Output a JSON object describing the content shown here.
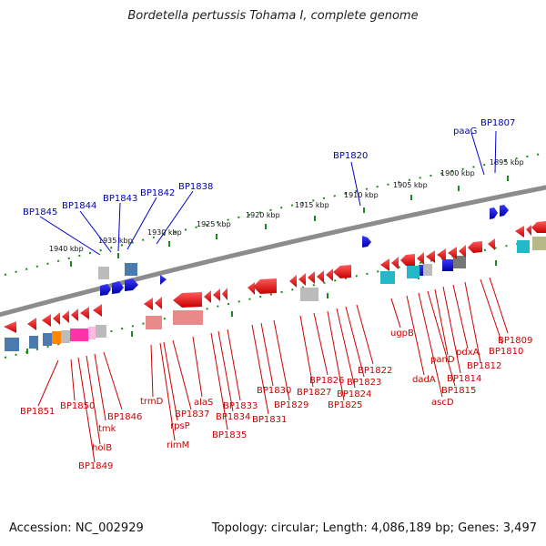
{
  "title": "Bordetella pertussis Tohama I, complete genome",
  "footer": {
    "accession": "Accession: NC_002929",
    "summary": "Topology: circular; Length: 4,086,189 bp; Genes: 3,497"
  },
  "colors": {
    "backbone": "#8c8c8c",
    "tick": "#1a8a1a",
    "forward_gene": "#0000cc",
    "reverse_gene": "#dd0000",
    "top_label": "#0000b0",
    "bottom_label": "#cc0000"
  },
  "scale_labels": [
    "1895 kbp",
    "1900 kbp",
    "1905 kbp",
    "1910 kbp",
    "1915 kbp",
    "1920 kbp",
    "1925 kbp",
    "1930 kbp",
    "1935 kbp",
    "1940 kbp"
  ],
  "top_labels": [
    "BP1807",
    "paaG",
    "BP1820",
    "BP1838",
    "BP1842",
    "BP1843",
    "BP1844",
    "BP1845"
  ],
  "bottom_labels": [
    "BP1809",
    "BP1810",
    "BP1812",
    "pdxA",
    "BP1814",
    "panD",
    "BP1815",
    "ascD",
    "dadA",
    "ugpB",
    "BP1822",
    "BP1823",
    "BP1824",
    "BP1825",
    "BP1826",
    "BP1827",
    "BP1829",
    "BP1830",
    "BP1831",
    "BP1833",
    "BP1834",
    "BP1835",
    "alaS",
    "BP1837",
    "rpsP",
    "rimM",
    "trmD",
    "BP1846",
    "tmk",
    "holB",
    "BP1849",
    "BP1850",
    "BP1851"
  ]
}
